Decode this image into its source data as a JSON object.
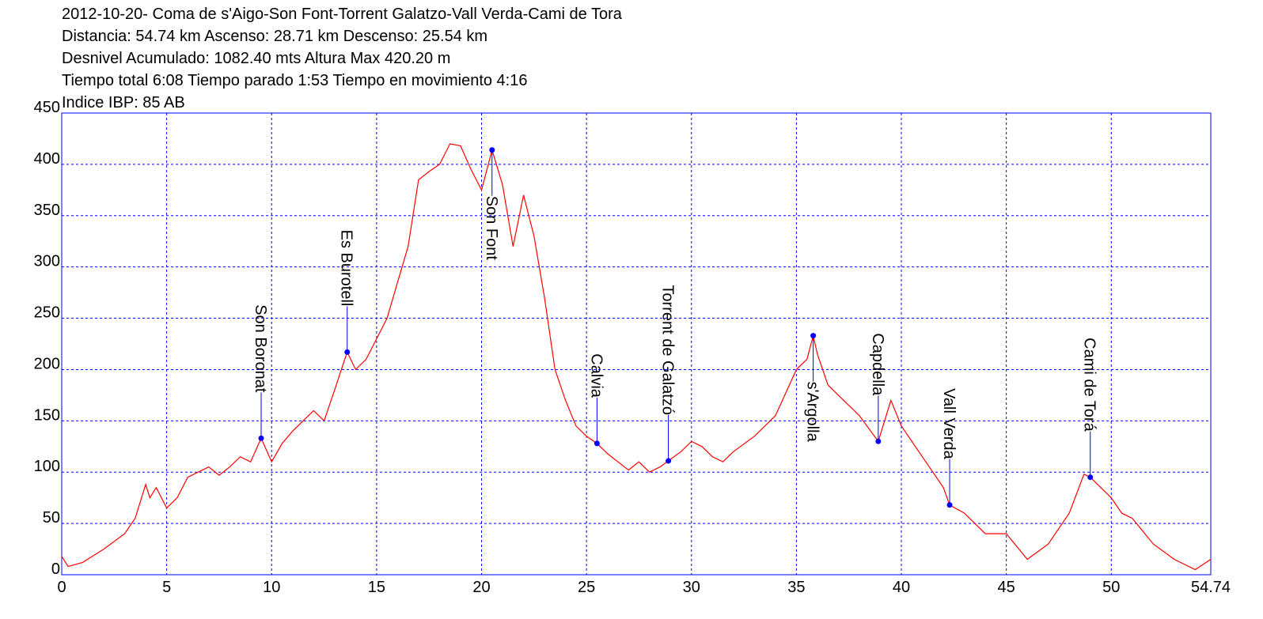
{
  "chart_data": {
    "type": "line",
    "title": "2012-10-20- Coma de s'Aigo-Son Font-Torrent Galatzo-Vall Verda-Cami de Tora",
    "subtitle": [
      "Distancia: 54.74 km Ascenso: 28.71 km Descenso: 25.54 km",
      "Desnivel Acumulado: 1082.40 mts  Altura Max 420.20 m",
      "Tiempo total 6:08 Tiempo parado 1:53 Tiempo en movimiento 4:16",
      "Indice IBP: 85 AB"
    ],
    "xlim": [
      0,
      54.74
    ],
    "xticks": [
      0,
      5,
      10,
      15,
      20,
      25,
      30,
      35,
      40,
      45,
      50,
      54.74
    ],
    "ylim": [
      0,
      450
    ],
    "yticks": [
      0,
      50,
      100,
      150,
      200,
      250,
      300,
      350,
      400,
      450
    ],
    "grid": true,
    "grid_color": "#0000ff",
    "frame_color": "#0000ff",
    "series": [
      {
        "color": "#ff0000",
        "x": [
          0,
          0.3,
          1,
          2,
          3,
          3.5,
          4,
          4.2,
          4.5,
          5,
          5.5,
          6,
          6.5,
          7,
          7.5,
          8,
          8.5,
          9,
          9.5,
          10,
          10.5,
          11,
          12,
          12.5,
          13,
          13.6,
          14,
          14.5,
          15,
          15.5,
          16,
          16.5,
          17,
          17.5,
          18,
          18.5,
          19,
          19.5,
          20,
          20.5,
          21,
          21.5,
          22,
          22.5,
          23,
          23.5,
          24,
          24.5,
          25,
          25.5,
          26,
          26.5,
          27,
          27.5,
          28,
          28.5,
          28.9,
          29.5,
          30,
          30.5,
          31,
          31.5,
          32,
          33,
          34,
          35,
          35.5,
          35.8,
          36,
          36.5,
          37,
          38,
          38.9,
          39.5,
          40,
          41,
          42,
          42.3,
          43,
          44,
          45,
          46,
          47,
          48,
          48.7,
          49,
          49.5,
          50,
          50.5,
          51,
          52,
          53,
          54,
          54.74
        ],
        "values": [
          18,
          8,
          12,
          25,
          40,
          55,
          88,
          75,
          85,
          65,
          75,
          95,
          100,
          105,
          97,
          105,
          115,
          110,
          133,
          110,
          128,
          140,
          160,
          150,
          180,
          217,
          200,
          210,
          230,
          250,
          285,
          320,
          385,
          393,
          400,
          420,
          418,
          395,
          375,
          414,
          380,
          320,
          370,
          330,
          270,
          200,
          170,
          145,
          135,
          128,
          118,
          110,
          102,
          110,
          100,
          105,
          111,
          120,
          130,
          125,
          115,
          110,
          120,
          135,
          155,
          200,
          210,
          233,
          215,
          185,
          175,
          155,
          130,
          170,
          145,
          115,
          85,
          68,
          60,
          40,
          40,
          15,
          30,
          60,
          98,
          95,
          85,
          75,
          60,
          55,
          30,
          15,
          5,
          15
        ]
      }
    ],
    "waypoints": [
      {
        "name": "Son Boronat",
        "x": 9.5,
        "y": 133,
        "position": "above"
      },
      {
        "name": "Es Burotell",
        "x": 13.6,
        "y": 217,
        "position": "above"
      },
      {
        "name": "Son Font",
        "x": 20.5,
        "y": 414,
        "position": "below"
      },
      {
        "name": "Calvia",
        "x": 25.5,
        "y": 128,
        "position": "above"
      },
      {
        "name": "Torrent de Galatzó",
        "x": 28.9,
        "y": 111,
        "position": "above"
      },
      {
        "name": "s'Argolla",
        "x": 35.8,
        "y": 233,
        "position": "below"
      },
      {
        "name": "Capdella",
        "x": 38.9,
        "y": 130,
        "position": "above"
      },
      {
        "name": "Vall Verda",
        "x": 42.3,
        "y": 68,
        "position": "above"
      },
      {
        "name": "Cami de Torá",
        "x": 49,
        "y": 95,
        "position": "above"
      }
    ],
    "waypoint_color": "#0000ff"
  }
}
